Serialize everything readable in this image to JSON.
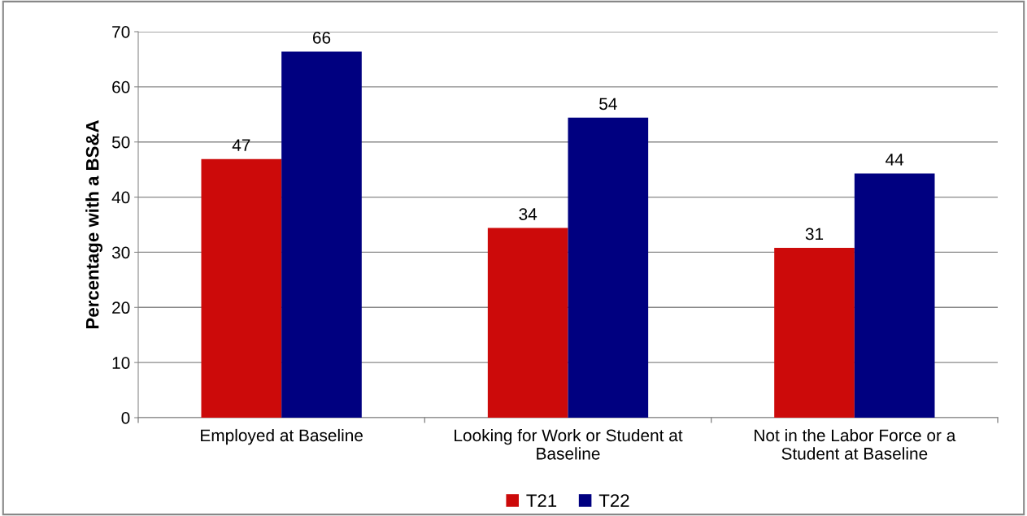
{
  "chart_data": {
    "type": "bar",
    "ylabel": "Percentage with a BS&A",
    "categories": [
      "Employed at Baseline",
      "Looking for Work or Student at Baseline",
      "Not in the Labor Force or a Student at Baseline"
    ],
    "series": [
      {
        "name": "T21",
        "color": "#cc0a0a",
        "values": [
          46.9,
          34.4,
          30.8
        ],
        "value_labels": [
          "47",
          "34",
          "31"
        ]
      },
      {
        "name": "T22",
        "color": "#000080",
        "values": [
          66.4,
          54.4,
          44.3
        ],
        "value_labels": [
          "66",
          "54",
          "44"
        ]
      }
    ],
    "ylim": [
      0,
      70
    ],
    "yticks": [
      0,
      10,
      20,
      30,
      40,
      50,
      60,
      70
    ],
    "grid": "y",
    "legend": "bottom"
  }
}
